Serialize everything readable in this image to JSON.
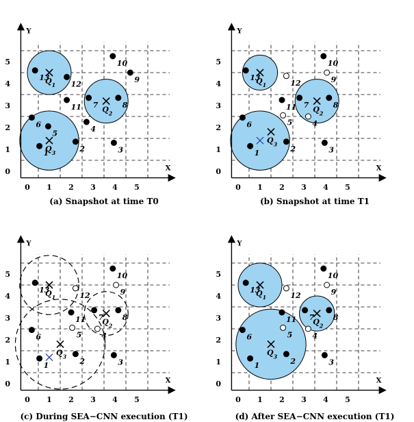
{
  "colors": {
    "region_fill": "#9fd3f2",
    "stroke": "#000000",
    "blue_cross": "#1f3a9e"
  },
  "axes": {
    "x_label": "X",
    "y_label": "Y",
    "x_ticks": [
      "0",
      "1",
      "2",
      "3",
      "4",
      "5"
    ],
    "y_ticks": [
      "0",
      "1",
      "2",
      "3",
      "4",
      "5"
    ]
  },
  "panels": [
    {
      "id": "a",
      "caption": "(a) Snapshot at time T0",
      "objects": [
        {
          "name": "1",
          "x": 0.55,
          "y": 1.15,
          "filled": true
        },
        {
          "name": "2",
          "x": 2.2,
          "y": 1.35,
          "filled": true
        },
        {
          "name": "3",
          "x": 3.95,
          "y": 1.3,
          "filled": true
        },
        {
          "name": "4",
          "x": 2.7,
          "y": 2.25,
          "filled": true
        },
        {
          "name": "5",
          "x": 0.95,
          "y": 2.05,
          "filled": true
        },
        {
          "name": "6",
          "x": 0.2,
          "y": 2.45,
          "filled": true
        },
        {
          "name": "7",
          "x": 2.8,
          "y": 3.35,
          "filled": true
        },
        {
          "name": "8",
          "x": 4.15,
          "y": 3.35,
          "filled": true
        },
        {
          "name": "9",
          "x": 4.7,
          "y": 4.5,
          "filled": true
        },
        {
          "name": "10",
          "x": 3.9,
          "y": 5.25,
          "filled": true
        },
        {
          "name": "11",
          "x": 1.8,
          "y": 3.25,
          "filled": true
        },
        {
          "name": "12",
          "x": 1.8,
          "y": 4.3,
          "filled": true
        },
        {
          "name": "13",
          "x": 0.35,
          "y": 4.6,
          "filled": true
        }
      ],
      "queries": [
        {
          "name": "Q1",
          "x": 1.0,
          "y": 4.5
        },
        {
          "name": "Q2",
          "x": 3.6,
          "y": 3.2
        },
        {
          "name": "Q3",
          "x": 1.0,
          "y": 1.4
        }
      ]
    },
    {
      "id": "b",
      "caption": "(b) Snapshot at time T1",
      "objects": [
        {
          "name": "1",
          "x": 0.55,
          "y": 1.15,
          "filled": true
        },
        {
          "name": "2",
          "x": 2.2,
          "y": 1.35,
          "filled": true
        },
        {
          "name": "3",
          "x": 3.95,
          "y": 1.3,
          "filled": true
        },
        {
          "name": "4",
          "x": 3.2,
          "y": 2.5,
          "filled": false
        },
        {
          "name": "5",
          "x": 2.05,
          "y": 2.55,
          "filled": false
        },
        {
          "name": "6",
          "x": 0.2,
          "y": 2.45,
          "filled": true
        },
        {
          "name": "7",
          "x": 2.8,
          "y": 3.35,
          "filled": true
        },
        {
          "name": "8",
          "x": 4.15,
          "y": 3.35,
          "filled": true
        },
        {
          "name": "9",
          "x": 4.05,
          "y": 4.5,
          "filled": false
        },
        {
          "name": "10",
          "x": 3.9,
          "y": 5.25,
          "filled": true
        },
        {
          "name": "11",
          "x": 2.0,
          "y": 3.25,
          "filled": true
        },
        {
          "name": "12",
          "x": 2.2,
          "y": 4.35,
          "filled": false
        },
        {
          "name": "13",
          "x": 0.35,
          "y": 4.6,
          "filled": true
        }
      ],
      "queries": [
        {
          "name": "Q1",
          "x": 1.0,
          "y": 4.5
        },
        {
          "name": "Q2",
          "x": 3.6,
          "y": 3.2
        },
        {
          "name": "Q3",
          "x": 1.5,
          "y": 1.8
        }
      ]
    },
    {
      "id": "c",
      "caption": "(c) During SEA−CNN execution (T1)",
      "objects": [
        {
          "name": "1",
          "x": 0.55,
          "y": 1.15,
          "filled": true
        },
        {
          "name": "2",
          "x": 2.2,
          "y": 1.35,
          "filled": true
        },
        {
          "name": "3",
          "x": 3.95,
          "y": 1.3,
          "filled": true
        },
        {
          "name": "4",
          "x": 3.2,
          "y": 2.5,
          "filled": false
        },
        {
          "name": "5",
          "x": 2.05,
          "y": 2.55,
          "filled": false
        },
        {
          "name": "6",
          "x": 0.2,
          "y": 2.45,
          "filled": true
        },
        {
          "name": "7",
          "x": 3.05,
          "y": 3.35,
          "filled": true
        },
        {
          "name": "8",
          "x": 4.15,
          "y": 3.35,
          "filled": true
        },
        {
          "name": "9",
          "x": 4.05,
          "y": 4.5,
          "filled": false
        },
        {
          "name": "10",
          "x": 3.9,
          "y": 5.25,
          "filled": true
        },
        {
          "name": "11",
          "x": 2.0,
          "y": 3.25,
          "filled": true
        },
        {
          "name": "12",
          "x": 2.2,
          "y": 4.35,
          "filled": false
        },
        {
          "name": "13",
          "x": 0.35,
          "y": 4.6,
          "filled": true
        }
      ],
      "queries": [
        {
          "name": "Q1",
          "x": 1.0,
          "y": 4.5
        },
        {
          "name": "Q2",
          "x": 3.6,
          "y": 3.2
        },
        {
          "name": "Q3",
          "x": 1.5,
          "y": 1.8
        }
      ]
    },
    {
      "id": "d",
      "caption": "(d) After SEA−CNN execution (T1)",
      "objects": [
        {
          "name": "1",
          "x": 0.55,
          "y": 1.15,
          "filled": true
        },
        {
          "name": "2",
          "x": 2.2,
          "y": 1.35,
          "filled": true
        },
        {
          "name": "3",
          "x": 3.95,
          "y": 1.3,
          "filled": true
        },
        {
          "name": "4",
          "x": 3.2,
          "y": 2.5,
          "filled": false
        },
        {
          "name": "5",
          "x": 2.05,
          "y": 2.55,
          "filled": false
        },
        {
          "name": "6",
          "x": 0.2,
          "y": 2.45,
          "filled": true
        },
        {
          "name": "7",
          "x": 3.05,
          "y": 3.35,
          "filled": true
        },
        {
          "name": "8",
          "x": 4.15,
          "y": 3.35,
          "filled": true
        },
        {
          "name": "9",
          "x": 4.05,
          "y": 4.5,
          "filled": false
        },
        {
          "name": "10",
          "x": 3.9,
          "y": 5.25,
          "filled": true
        },
        {
          "name": "11",
          "x": 2.0,
          "y": 3.25,
          "filled": true
        },
        {
          "name": "12",
          "x": 2.2,
          "y": 4.35,
          "filled": false
        },
        {
          "name": "13",
          "x": 0.35,
          "y": 4.6,
          "filled": true
        }
      ],
      "queries": [
        {
          "name": "Q1",
          "x": 1.0,
          "y": 4.5
        },
        {
          "name": "Q2",
          "x": 3.6,
          "y": 3.2
        },
        {
          "name": "Q3",
          "x": 1.5,
          "y": 1.8
        }
      ]
    }
  ]
}
